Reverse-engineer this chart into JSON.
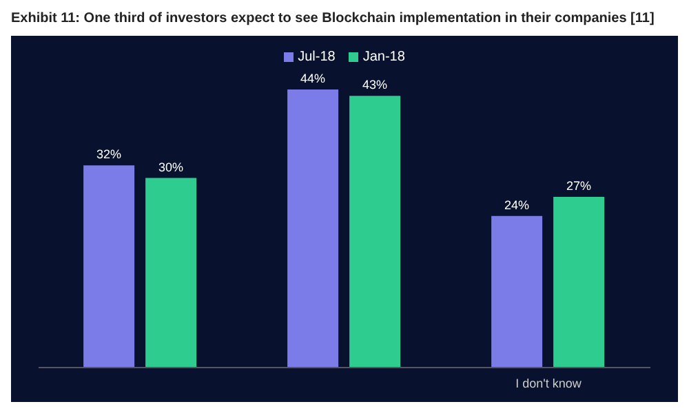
{
  "chart_data": {
    "type": "bar",
    "title": "Exhibit 11: One third of investors expect to see Blockchain implementation in their companies [11]",
    "categories": [
      null,
      null,
      "I don't know"
    ],
    "series": [
      {
        "name": "Jul-18",
        "color": "#7b7ce8",
        "values": [
          32,
          44,
          24
        ],
        "value_labels": [
          "32%",
          "44%",
          "24%"
        ]
      },
      {
        "name": "Jan-18",
        "color": "#2ecc8f",
        "values": [
          30,
          43,
          27
        ],
        "value_labels": [
          "30%",
          "43%",
          "27%"
        ]
      }
    ],
    "legend": "top"
  }
}
